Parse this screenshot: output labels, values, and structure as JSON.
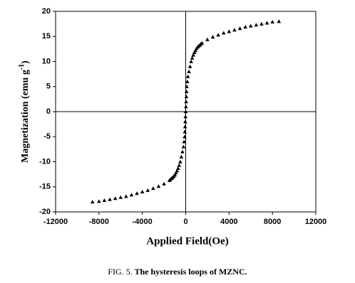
{
  "chart_data": {
    "type": "scatter",
    "x_label": "Applied Field(Oe)",
    "y_label": {
      "text": "Magnetization (emu g",
      "superscript": "-1",
      "close": ")"
    },
    "caption": {
      "label": "FIG. 5.",
      "text": "The hysteresis loops of MZNC."
    },
    "color": "#000000",
    "marker": "triangle",
    "x": [
      -8600,
      -8000,
      -7500,
      -7000,
      -6500,
      -6000,
      -5500,
      -5000,
      -4500,
      -4000,
      -3500,
      -3000,
      -2500,
      -2000,
      -1500,
      -1400,
      -1300,
      -1200,
      -1100,
      -1000,
      -900,
      -800,
      -700,
      -600,
      -500,
      -400,
      -300,
      -200,
      -150,
      -100,
      -80,
      -60,
      -40,
      -20,
      0,
      20,
      40,
      60,
      80,
      100,
      150,
      200,
      300,
      400,
      500,
      600,
      700,
      800,
      900,
      1000,
      1100,
      1200,
      1300,
      1400,
      1500,
      2000,
      2500,
      3000,
      3500,
      4000,
      4500,
      5000,
      5500,
      6000,
      6500,
      7000,
      7500,
      8000,
      8600
    ],
    "y": [
      -18,
      -17.9,
      -17.7,
      -17.5,
      -17.3,
      -17.1,
      -16.9,
      -16.6,
      -16.3,
      -16,
      -15.7,
      -15.3,
      -14.9,
      -14.4,
      -13.7,
      -13.5,
      -13.3,
      -13.1,
      -12.9,
      -12.6,
      -12.2,
      -11.8,
      -11.3,
      -10.7,
      -10,
      -9,
      -8,
      -7,
      -6,
      -5,
      -4,
      -3,
      -2,
      -1,
      0,
      1,
      2,
      3,
      4,
      5,
      6,
      7,
      8,
      9,
      10,
      10.7,
      11.3,
      11.8,
      12.2,
      12.6,
      12.9,
      13.1,
      13.3,
      13.5,
      13.7,
      14.4,
      14.9,
      15.3,
      15.7,
      16,
      16.3,
      16.6,
      16.9,
      17.1,
      17.3,
      17.5,
      17.7,
      17.9,
      18
    ],
    "xlim": [
      -12000,
      12000
    ],
    "xticks": [
      -12000,
      -8000,
      -4000,
      0,
      4000,
      8000,
      12000
    ],
    "ylim": [
      -20,
      20
    ],
    "yticks": [
      -20,
      -15,
      -10,
      -5,
      0,
      5,
      10,
      15,
      20
    ]
  }
}
